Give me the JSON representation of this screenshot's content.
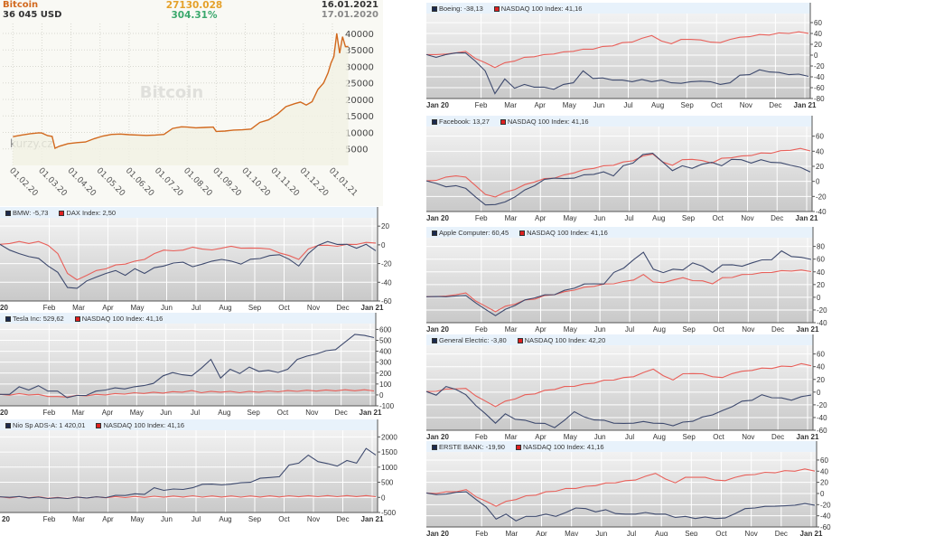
{
  "bitcoin": {
    "title": "Bitcoin",
    "price": "36 045 USD",
    "change": "27130.028",
    "change_pct": "304.31%",
    "date_end": "16.01.2021",
    "date_start": "17.01.2020",
    "watermark": "Bitcoin",
    "logo": "kurzy.cz",
    "colors": {
      "line": "#d2691e",
      "change": "#e5a12a",
      "pct": "#3aa86c"
    }
  },
  "chart_data": [
    {
      "id": "bitcoin",
      "type": "area",
      "title": "Bitcoin",
      "ylabel": "USD",
      "ylim": [
        0,
        43000
      ],
      "yticks": [
        5000,
        10000,
        15000,
        20000,
        25000,
        30000,
        35000,
        40000
      ],
      "xticks": [
        "01.02.20",
        "01.03.20",
        "01.04.20",
        "01.05.20",
        "01.06.20",
        "01.07.20",
        "01.08.20",
        "01.09.20",
        "01.10.20",
        "01.11.20",
        "01.12.20",
        "01.01.21"
      ],
      "grid": true,
      "series": [
        {
          "name": "Bitcoin",
          "color": "#d2691e",
          "x": [
            0,
            0.3,
            0.6,
            0.9,
            1.0,
            1.2,
            1.35,
            1.45,
            1.6,
            1.9,
            2.2,
            2.5,
            2.8,
            3.1,
            3.4,
            3.7,
            4.0,
            4.3,
            4.6,
            4.9,
            5.2,
            5.5,
            5.8,
            6.0,
            6.3,
            6.6,
            6.9,
            7.0,
            7.3,
            7.6,
            7.9,
            8.2,
            8.5,
            8.8,
            9.1,
            9.4,
            9.7,
            9.9,
            10.1,
            10.3,
            10.5,
            10.7,
            10.85,
            10.95,
            11.05,
            11.15,
            11.25,
            11.35,
            11.45,
            11.55
          ],
          "values": [
            8700,
            9200,
            9600,
            9900,
            9800,
            9000,
            8800,
            5200,
            5800,
            6600,
            6900,
            7100,
            8100,
            8900,
            9400,
            9500,
            9300,
            9200,
            9100,
            9200,
            9400,
            11200,
            11700,
            11600,
            11400,
            11500,
            11600,
            10300,
            10400,
            10700,
            10800,
            11000,
            13000,
            13800,
            15500,
            17800,
            18700,
            19200,
            18300,
            19300,
            23000,
            25000,
            28000,
            31000,
            33000,
            40000,
            34000,
            39000,
            36000,
            36045
          ]
        }
      ]
    },
    {
      "id": "bmw",
      "type": "line",
      "ylim": [
        -60,
        25
      ],
      "yticks": [
        20,
        0,
        -20,
        -40,
        -60
      ],
      "xticks": [
        "20",
        "Feb",
        "Mar",
        "Apr",
        "May",
        "Jun",
        "Jul",
        "Aug",
        "Sep",
        "Oct",
        "Nov",
        "Dec",
        "Jan 21"
      ],
      "series": [
        {
          "name": "BMW",
          "label_value": "-5,73",
          "color": "#3e4a6e",
          "values": [
            0,
            -5,
            -10,
            -12,
            -15,
            -22,
            -30,
            -45,
            -47,
            -38,
            -35,
            -30,
            -28,
            -32,
            -26,
            -30,
            -25,
            -22,
            -20,
            -18,
            -24,
            -20,
            -18,
            -15,
            -18,
            -20,
            -16,
            -14,
            -12,
            -10,
            -16,
            -22,
            -10,
            0,
            3,
            1,
            0,
            -3,
            0,
            -5.73
          ]
        },
        {
          "name": "DAX Index",
          "label_value": "2,50",
          "color": "#e8605a",
          "values": [
            0,
            2,
            3,
            2,
            3,
            0,
            -10,
            -30,
            -38,
            -32,
            -28,
            -25,
            -22,
            -20,
            -18,
            -15,
            -10,
            -5,
            -7,
            -5,
            -3,
            -4,
            -6,
            -3,
            -2,
            -3,
            -4,
            -3,
            -5,
            -8,
            -12,
            -15,
            -5,
            0,
            -1,
            -1,
            0,
            1,
            2,
            2.5
          ]
        }
      ]
    },
    {
      "id": "tesla",
      "type": "line",
      "ylim": [
        -100,
        620
      ],
      "yticks": [
        600,
        500,
        400,
        300,
        200,
        100,
        0,
        -100
      ],
      "xticks": [
        "20",
        "Feb",
        "Mar",
        "Apr",
        "May",
        "Jun",
        "Jul",
        "Aug",
        "Sep",
        "Oct",
        "Nov",
        "Dec",
        "Jan 21"
      ],
      "series": [
        {
          "name": "Tesla Inc",
          "label_value": "529,62",
          "color": "#3e4a6e",
          "values": [
            0,
            10,
            70,
            50,
            80,
            40,
            30,
            -20,
            -10,
            0,
            30,
            50,
            60,
            60,
            70,
            90,
            100,
            180,
            200,
            190,
            170,
            250,
            320,
            160,
            230,
            200,
            250,
            220,
            220,
            210,
            230,
            330,
            350,
            380,
            400,
            420,
            480,
            560,
            540,
            529.62
          ]
        },
        {
          "name": "NASDAQ 100 Index",
          "label_value": "41,16",
          "color": "#e8605a",
          "values": [
            0,
            3,
            8,
            5,
            0,
            -10,
            -20,
            -15,
            -8,
            -3,
            0,
            5,
            8,
            12,
            15,
            18,
            20,
            22,
            25,
            30,
            35,
            25,
            28,
            30,
            28,
            25,
            28,
            30,
            32,
            33,
            35,
            37,
            38,
            40,
            41,
            42,
            42,
            43,
            42,
            41.16
          ]
        }
      ]
    },
    {
      "id": "nio",
      "type": "line",
      "ylim": [
        -500,
        2100
      ],
      "yticks": [
        2000,
        1500,
        1000,
        500,
        0,
        -500
      ],
      "xticks": [
        "20",
        "Feb",
        "Mar",
        "Apr",
        "May",
        "Jun",
        "Jul",
        "Aug",
        "Sep",
        "Oct",
        "Nov",
        "Dec",
        "Jan 21"
      ],
      "series": [
        {
          "name": "Nio Sp ADS-A",
          "label_value": "1 420,01",
          "color": "#3e4a6e",
          "values": [
            0,
            20,
            10,
            0,
            -10,
            -20,
            -30,
            -20,
            -10,
            0,
            0,
            10,
            50,
            80,
            100,
            120,
            300,
            250,
            260,
            280,
            300,
            450,
            420,
            430,
            420,
            500,
            480,
            650,
            640,
            700,
            1050,
            1150,
            1380,
            1200,
            1100,
            1050,
            1200,
            1150,
            1600,
            1420.01
          ]
        },
        {
          "name": "NASDAQ 100 Index",
          "label_value": "41,16",
          "color": "#e8605a",
          "values": [
            0,
            3,
            8,
            5,
            0,
            -10,
            -20,
            -15,
            -8,
            -3,
            0,
            5,
            8,
            12,
            15,
            18,
            20,
            22,
            25,
            30,
            35,
            25,
            28,
            30,
            28,
            25,
            28,
            30,
            32,
            33,
            35,
            37,
            38,
            40,
            41,
            42,
            42,
            43,
            42,
            41.16
          ]
        }
      ]
    },
    {
      "id": "boeing",
      "type": "line",
      "ylim": [
        -80,
        70
      ],
      "yticks": [
        60,
        40,
        20,
        0,
        -20,
        -40,
        -60,
        -80
      ],
      "xticks": [
        "Jan 20",
        "Feb",
        "Mar",
        "Apr",
        "May",
        "Jun",
        "Jul",
        "Aug",
        "Sep",
        "Oct",
        "Nov",
        "Dec",
        "Jan 21"
      ],
      "series": [
        {
          "name": "Boeing",
          "label_value": "-38,13",
          "color": "#3e4a6e",
          "values": [
            0,
            -3,
            0,
            5,
            3,
            -10,
            -30,
            -70,
            -45,
            -60,
            -55,
            -58,
            -60,
            -62,
            -55,
            -50,
            -30,
            -42,
            -43,
            -45,
            -47,
            -48,
            -46,
            -48,
            -47,
            -50,
            -53,
            -48,
            -49,
            -48,
            -55,
            -50,
            -38,
            -35,
            -28,
            -30,
            -33,
            -35,
            -36,
            -38.13
          ]
        },
        {
          "name": "NASDAQ 100 Index",
          "label_value": "41,16",
          "color": "#e8605a",
          "values": [
            0,
            2,
            1,
            5,
            6,
            -5,
            -15,
            -22,
            -15,
            -10,
            -5,
            -2,
            0,
            3,
            5,
            8,
            10,
            12,
            15,
            18,
            22,
            25,
            30,
            37,
            25,
            22,
            28,
            30,
            27,
            25,
            22,
            30,
            32,
            35,
            37,
            38,
            40,
            41,
            42,
            41.16
          ]
        }
      ]
    },
    {
      "id": "facebook",
      "type": "line",
      "ylim": [
        -40,
        68
      ],
      "yticks": [
        60,
        40,
        20,
        0,
        -20,
        -40
      ],
      "xticks": [
        "Jan 20",
        "Feb",
        "Mar",
        "Apr",
        "May",
        "Jun",
        "Jul",
        "Aug",
        "Sep",
        "Oct",
        "Nov",
        "Dec",
        "Jan 21"
      ],
      "series": [
        {
          "name": "Facebook",
          "label_value": "13,27",
          "color": "#3e4a6e",
          "values": [
            0,
            -2,
            -8,
            -5,
            -10,
            -20,
            -32,
            -30,
            -28,
            -20,
            -12,
            -5,
            2,
            5,
            3,
            5,
            8,
            10,
            12,
            8,
            20,
            25,
            35,
            38,
            25,
            15,
            20,
            18,
            22,
            26,
            20,
            30,
            28,
            25,
            28,
            26,
            24,
            22,
            18,
            13.27
          ]
        },
        {
          "name": "NASDAQ 100 Index",
          "label_value": "41,16",
          "color": "#e8605a",
          "values": [
            0,
            2,
            5,
            8,
            5,
            -5,
            -18,
            -20,
            -15,
            -10,
            -5,
            0,
            3,
            5,
            8,
            12,
            15,
            18,
            20,
            22,
            25,
            28,
            33,
            37,
            25,
            22,
            28,
            30,
            27,
            25,
            30,
            32,
            33,
            35,
            37,
            38,
            40,
            42,
            43,
            41.16
          ]
        }
      ]
    },
    {
      "id": "apple",
      "type": "line",
      "ylim": [
        -40,
        88
      ],
      "yticks": [
        80,
        60,
        40,
        20,
        0,
        -20,
        -40
      ],
      "xticks": [
        "Jan 20",
        "Feb",
        "Mar",
        "Apr",
        "May",
        "Jun",
        "Jul",
        "Aug",
        "Sep",
        "Oct",
        "Nov",
        "Dec",
        "Jan 21"
      ],
      "series": [
        {
          "name": "Apple Computer",
          "label_value": "60,45",
          "color": "#3e4a6e",
          "values": [
            0,
            2,
            0,
            3,
            2,
            -8,
            -20,
            -28,
            -20,
            -12,
            -5,
            0,
            3,
            5,
            10,
            15,
            20,
            22,
            20,
            40,
            45,
            60,
            70,
            45,
            38,
            45,
            42,
            55,
            48,
            40,
            50,
            52,
            48,
            55,
            58,
            60,
            72,
            65,
            62,
            60.45
          ]
        },
        {
          "name": "NASDAQ 100 Index",
          "label_value": "41,16",
          "color": "#e8605a",
          "values": [
            0,
            2,
            1,
            5,
            6,
            -5,
            -15,
            -22,
            -15,
            -10,
            -5,
            -2,
            2,
            5,
            8,
            12,
            15,
            18,
            20,
            22,
            24,
            28,
            35,
            25,
            22,
            28,
            30,
            27,
            25,
            22,
            30,
            32,
            35,
            37,
            38,
            40,
            41,
            42,
            42,
            41.16
          ]
        }
      ]
    },
    {
      "id": "ge",
      "type": "line",
      "ylim": [
        -60,
        68
      ],
      "yticks": [
        60,
        40,
        20,
        0,
        -20,
        -40,
        -60
      ],
      "xticks": [
        "Jan 20",
        "Feb",
        "Mar",
        "Apr",
        "May",
        "Jun",
        "Jul",
        "Aug",
        "Sep",
        "Oct",
        "Nov",
        "Dec",
        "Jan 21"
      ],
      "series": [
        {
          "name": "General Electric",
          "label_value": "-3,80",
          "color": "#3e4a6e",
          "values": [
            0,
            -4,
            8,
            5,
            -5,
            -20,
            -35,
            -48,
            -35,
            -42,
            -45,
            -48,
            -50,
            -55,
            -45,
            -30,
            -40,
            -43,
            -45,
            -48,
            -50,
            -48,
            -47,
            -48,
            -50,
            -52,
            -48,
            -45,
            -40,
            -35,
            -30,
            -22,
            -15,
            -12,
            -5,
            -8,
            -10,
            -12,
            -8,
            -3.8
          ]
        },
        {
          "name": "NASDAQ 100 Index",
          "label_value": "42,20",
          "color": "#e8605a",
          "values": [
            0,
            2,
            4,
            6,
            5,
            -5,
            -15,
            -22,
            -15,
            -10,
            -5,
            -2,
            2,
            5,
            8,
            10,
            12,
            15,
            18,
            20,
            22,
            25,
            30,
            37,
            25,
            20,
            28,
            30,
            28,
            25,
            22,
            30,
            32,
            35,
            37,
            38,
            40,
            41,
            44,
            42.2
          ]
        }
      ]
    },
    {
      "id": "erste",
      "type": "line",
      "ylim": [
        -60,
        68
      ],
      "yticks": [
        60,
        40,
        20,
        0,
        -20,
        -40,
        -60
      ],
      "xticks": [
        "Jan 20",
        "Feb",
        "Mar",
        "Apr",
        "May",
        "Jun",
        "Jul",
        "Aug",
        "Sep",
        "Oct",
        "Nov",
        "Dec",
        "Jan 21"
      ],
      "series": [
        {
          "name": "ERSTE BANK",
          "label_value": "-19,90",
          "color": "#3e4a6e",
          "values": [
            0,
            -1,
            -2,
            3,
            2,
            -10,
            -25,
            -45,
            -38,
            -48,
            -42,
            -40,
            -38,
            -40,
            -35,
            -25,
            -28,
            -32,
            -30,
            -35,
            -38,
            -36,
            -35,
            -36,
            -38,
            -42,
            -42,
            -44,
            -43,
            -44,
            -45,
            -35,
            -28,
            -25,
            -24,
            -22,
            -23,
            -20,
            -19,
            -19.9
          ]
        },
        {
          "name": "NASDAQ 100 Index",
          "label_value": "41,16",
          "color": "#e8605a",
          "values": [
            0,
            1,
            2,
            4,
            6,
            -5,
            -15,
            -22,
            -15,
            -10,
            -5,
            -2,
            2,
            5,
            8,
            10,
            12,
            15,
            18,
            20,
            22,
            25,
            30,
            37,
            25,
            20,
            28,
            30,
            28,
            25,
            22,
            30,
            32,
            35,
            37,
            38,
            40,
            41,
            43,
            41.16
          ]
        }
      ]
    }
  ]
}
